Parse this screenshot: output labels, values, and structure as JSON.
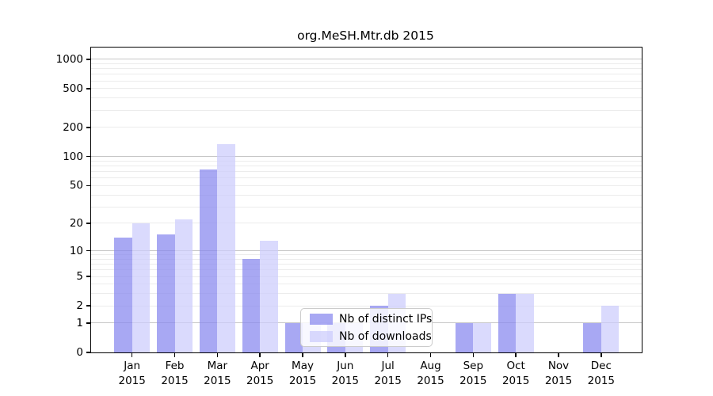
{
  "chart_data": {
    "type": "bar",
    "title": "org.MeSH.Mtr.db 2015",
    "categories": [
      "Jan",
      "Feb",
      "Mar",
      "Apr",
      "May",
      "Jun",
      "Jul",
      "Aug",
      "Sep",
      "Oct",
      "Nov",
      "Dec"
    ],
    "year_label": "2015",
    "series": [
      {
        "name": "Nb of distinct IPs",
        "color": "rgba(136,136,238,0.73)",
        "values": [
          14,
          15,
          73,
          8,
          1,
          1,
          2,
          0,
          1,
          3,
          0,
          1
        ]
      },
      {
        "name": "Nb of downloads",
        "color": "rgba(204,204,252,0.72)",
        "values": [
          20,
          22,
          135,
          13,
          1,
          1,
          3,
          0,
          1,
          3,
          0,
          2
        ]
      }
    ],
    "ylabel": "",
    "xlabel": "",
    "yticks": [
      0,
      1,
      2,
      5,
      10,
      20,
      50,
      100,
      200,
      500,
      1000
    ],
    "y_scale": "log10(value+1)",
    "ylim": [
      0,
      1320
    ],
    "grid": {
      "minor": [
        2,
        3,
        4,
        5,
        6,
        7,
        8,
        9,
        20,
        30,
        40,
        50,
        60,
        70,
        80,
        90,
        200,
        300,
        400,
        500,
        600,
        700,
        800,
        900
      ],
      "major": [
        1,
        10,
        100,
        1000
      ]
    },
    "legend_position": "lower-center-inside"
  }
}
